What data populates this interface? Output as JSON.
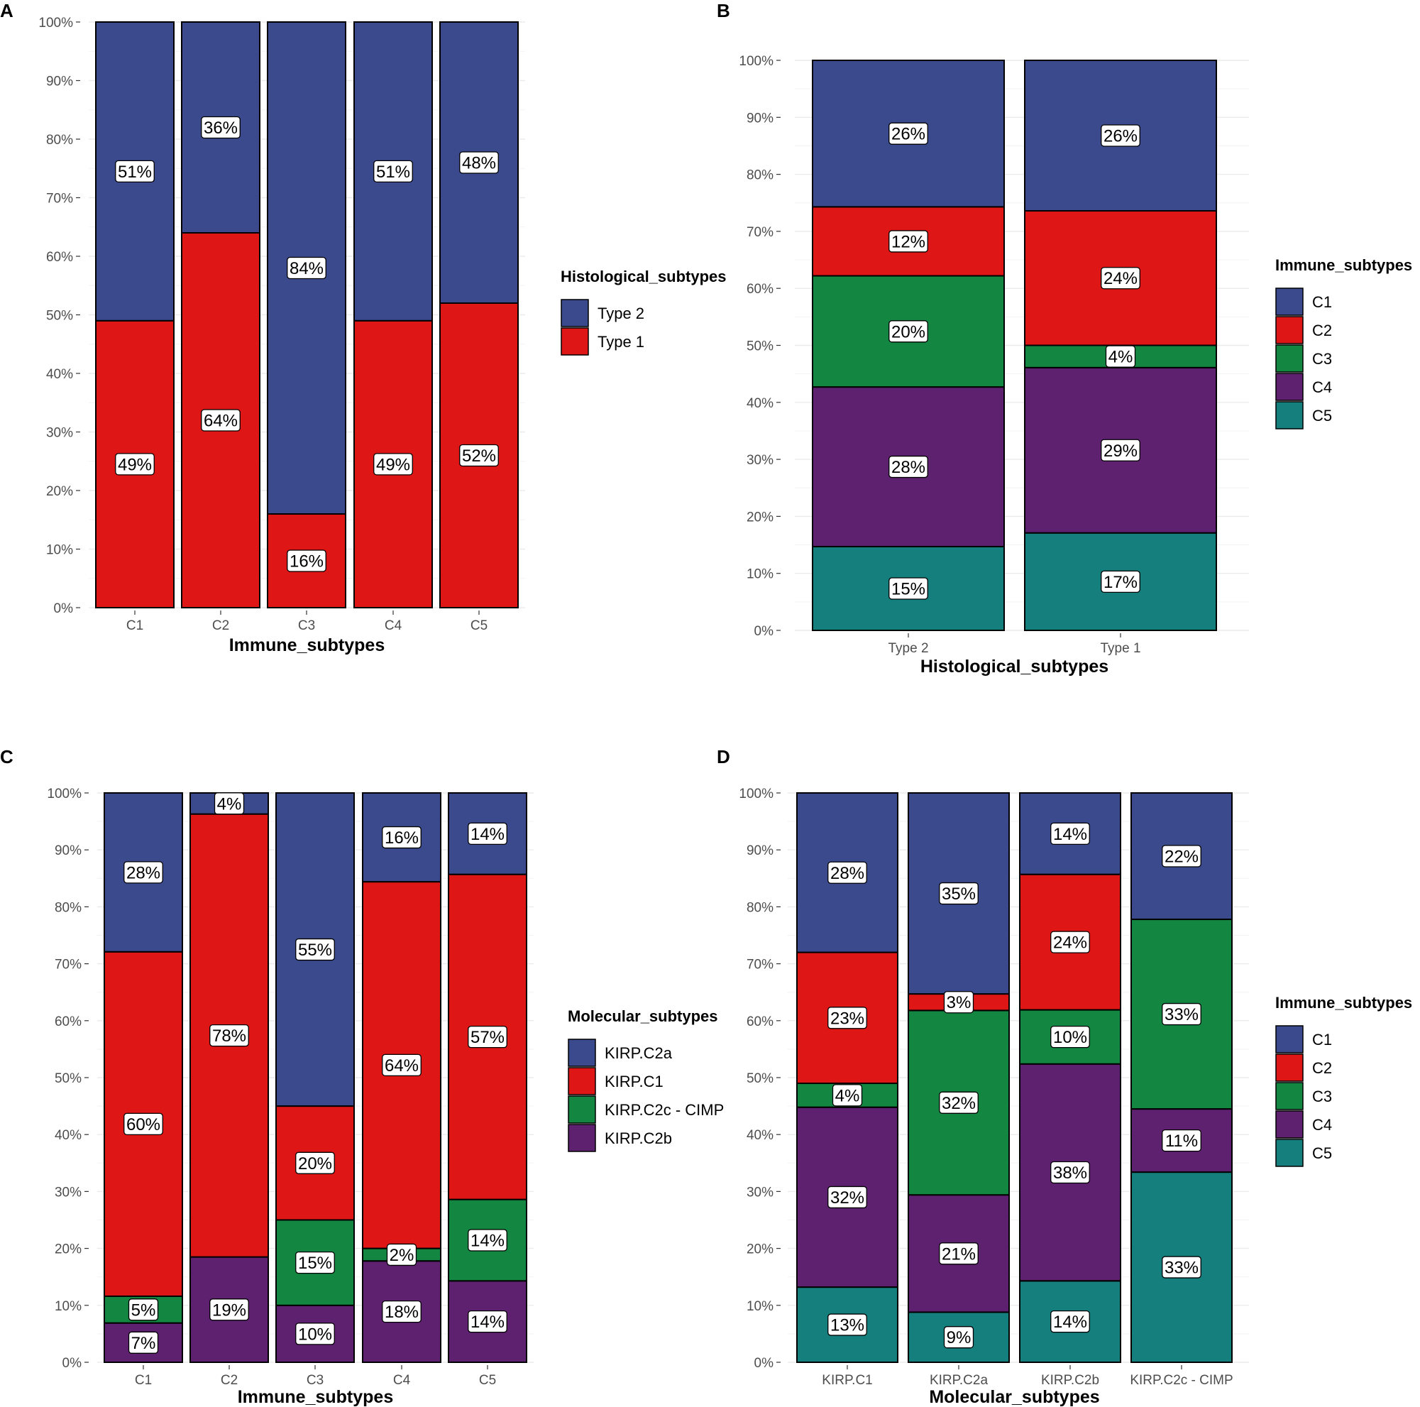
{
  "colors": {
    "navy": "#3a4a8c",
    "red": "#de1616",
    "green": "#138642",
    "purple": "#5e2170",
    "teal": "#157f7e"
  },
  "chart_data": [
    {
      "panel": "A",
      "type": "bar",
      "stacked": true,
      "xlabel": "Immune_subtypes",
      "ylabel": "",
      "ylim": [
        0,
        100
      ],
      "y_ticks": [
        "0%",
        "10%",
        "20%",
        "30%",
        "40%",
        "50%",
        "60%",
        "70%",
        "80%",
        "90%",
        "100%"
      ],
      "categories": [
        "C1",
        "C2",
        "C3",
        "C4",
        "C5"
      ],
      "legend_title": "Histological_subtypes",
      "legend_position": "right",
      "legend": [
        {
          "name": "Type 2",
          "color": "#3a4a8c"
        },
        {
          "name": "Type 1",
          "color": "#de1616"
        }
      ],
      "stack_order": [
        "Type 1",
        "Type 2"
      ],
      "series": [
        {
          "name": "Type 2",
          "color": "#3a4a8c",
          "values": [
            51,
            36,
            84,
            51,
            48
          ],
          "labels": [
            "51%",
            "36%",
            "84%",
            "51%",
            "48%"
          ]
        },
        {
          "name": "Type 1",
          "color": "#de1616",
          "values": [
            49,
            64,
            16,
            49,
            52
          ],
          "labels": [
            "49%",
            "64%",
            "16%",
            "49%",
            "52%"
          ]
        }
      ]
    },
    {
      "panel": "B",
      "type": "bar",
      "stacked": true,
      "xlabel": "Histological_subtypes",
      "ylabel": "",
      "ylim": [
        0,
        100
      ],
      "y_ticks": [
        "0%",
        "10%",
        "20%",
        "30%",
        "40%",
        "50%",
        "60%",
        "70%",
        "80%",
        "90%",
        "100%"
      ],
      "categories": [
        "Type 2",
        "Type 1"
      ],
      "legend_title": "Immune_subtypes",
      "legend_position": "right",
      "legend": [
        {
          "name": "C1",
          "color": "#3a4a8c"
        },
        {
          "name": "C2",
          "color": "#de1616"
        },
        {
          "name": "C3",
          "color": "#138642"
        },
        {
          "name": "C4",
          "color": "#5e2170"
        },
        {
          "name": "C5",
          "color": "#157f7e"
        }
      ],
      "stack_order": [
        "C5",
        "C4",
        "C3",
        "C2",
        "C1"
      ],
      "series": [
        {
          "name": "C1",
          "color": "#3a4a8c",
          "values": [
            25.7,
            26.4
          ],
          "labels": [
            "26%",
            "26%"
          ]
        },
        {
          "name": "C2",
          "color": "#de1616",
          "values": [
            12.1,
            23.6
          ],
          "labels": [
            "12%",
            "24%"
          ]
        },
        {
          "name": "C3",
          "color": "#138642",
          "values": [
            19.5,
            3.9
          ],
          "labels": [
            "20%",
            "4%"
          ]
        },
        {
          "name": "C4",
          "color": "#5e2170",
          "values": [
            28.0,
            29.0
          ],
          "labels": [
            "28%",
            "29%"
          ]
        },
        {
          "name": "C5",
          "color": "#157f7e",
          "values": [
            14.7,
            17.1
          ],
          "labels": [
            "15%",
            "17%"
          ]
        }
      ]
    },
    {
      "panel": "C",
      "type": "bar",
      "stacked": true,
      "xlabel": "Immune_subtypes",
      "ylabel": "",
      "ylim": [
        0,
        100
      ],
      "y_ticks": [
        "0%",
        "10%",
        "20%",
        "30%",
        "40%",
        "50%",
        "60%",
        "70%",
        "80%",
        "90%",
        "100%"
      ],
      "categories": [
        "C1",
        "C2",
        "C3",
        "C4",
        "C5"
      ],
      "legend_title": "Molecular_subtypes",
      "legend_position": "right",
      "legend": [
        {
          "name": "KIRP.C2a",
          "color": "#3a4a8c"
        },
        {
          "name": "KIRP.C1",
          "color": "#de1616"
        },
        {
          "name": "KIRP.C2c - CIMP",
          "color": "#138642"
        },
        {
          "name": "KIRP.C2b",
          "color": "#5e2170"
        }
      ],
      "stack_order": [
        "KIRP.C2b",
        "KIRP.C2c - CIMP",
        "KIRP.C1",
        "KIRP.C2a"
      ],
      "series": [
        {
          "name": "KIRP.C2a",
          "color": "#3a4a8c",
          "values": [
            27.9,
            3.7,
            55.0,
            15.6,
            14.3
          ],
          "labels": [
            "28%",
            "4%",
            "55%",
            "16%",
            "14%"
          ]
        },
        {
          "name": "KIRP.C1",
          "color": "#de1616",
          "values": [
            60.5,
            77.8,
            20.0,
            64.4,
            57.1
          ],
          "labels": [
            "60%",
            "78%",
            "20%",
            "64%",
            "57%"
          ]
        },
        {
          "name": "KIRP.C2c - CIMP",
          "color": "#138642",
          "values": [
            4.7,
            0,
            15.0,
            2.2,
            14.3
          ],
          "labels": [
            "5%",
            "",
            "15%",
            "2%",
            "14%"
          ]
        },
        {
          "name": "KIRP.C2b",
          "color": "#5e2170",
          "values": [
            6.9,
            18.5,
            10.0,
            17.8,
            14.3
          ],
          "labels": [
            "7%",
            "19%",
            "10%",
            "18%",
            "14%"
          ]
        }
      ]
    },
    {
      "panel": "D",
      "type": "bar",
      "stacked": true,
      "xlabel": "Molecular_subtypes",
      "ylabel": "",
      "ylim": [
        0,
        100
      ],
      "y_ticks": [
        "0%",
        "10%",
        "20%",
        "30%",
        "40%",
        "50%",
        "60%",
        "70%",
        "80%",
        "90%",
        "100%"
      ],
      "categories": [
        "KIRP.C1",
        "KIRP.C2a",
        "KIRP.C2b",
        "KIRP.C2c - CIMP"
      ],
      "legend_title": "Immune_subtypes",
      "legend_position": "right",
      "legend": [
        {
          "name": "C1",
          "color": "#3a4a8c"
        },
        {
          "name": "C2",
          "color": "#de1616"
        },
        {
          "name": "C3",
          "color": "#138642"
        },
        {
          "name": "C4",
          "color": "#5e2170"
        },
        {
          "name": "C5",
          "color": "#157f7e"
        }
      ],
      "stack_order": [
        "C5",
        "C4",
        "C3",
        "C2",
        "C1"
      ],
      "series": [
        {
          "name": "C1",
          "color": "#3a4a8c",
          "values": [
            28.0,
            35.3,
            14.3,
            22.2
          ],
          "labels": [
            "28%",
            "35%",
            "14%",
            "22%"
          ]
        },
        {
          "name": "C2",
          "color": "#de1616",
          "values": [
            23.0,
            2.9,
            23.8,
            0
          ],
          "labels": [
            "23%",
            "3%",
            "24%",
            ""
          ]
        },
        {
          "name": "C3",
          "color": "#138642",
          "values": [
            4.2,
            32.4,
            9.5,
            33.3
          ],
          "labels": [
            "4%",
            "32%",
            "10%",
            "33%"
          ]
        },
        {
          "name": "C4",
          "color": "#5e2170",
          "values": [
            31.6,
            20.6,
            38.1,
            11.1
          ],
          "labels": [
            "32%",
            "21%",
            "38%",
            "11%"
          ]
        },
        {
          "name": "C5",
          "color": "#157f7e",
          "values": [
            13.2,
            8.8,
            14.3,
            33.4
          ],
          "labels": [
            "13%",
            "9%",
            "14%",
            "33%"
          ]
        }
      ]
    }
  ]
}
